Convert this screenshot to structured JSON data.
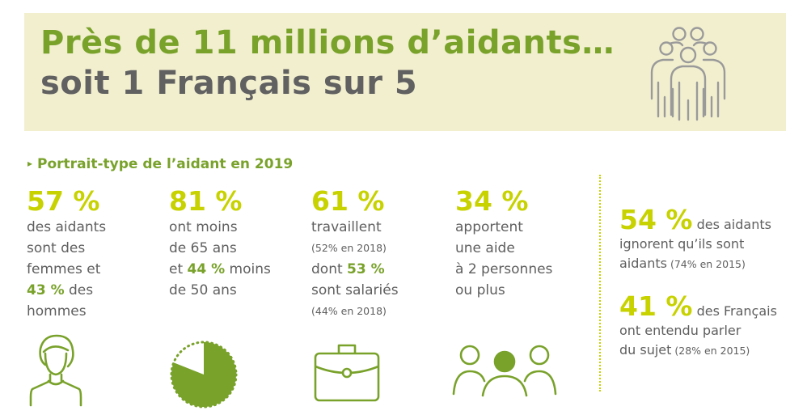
{
  "header": {
    "title_line1": "Près de 11 millions d’aidants…",
    "title_line2": "soit 1 Français sur 5",
    "icon": "group-people-icon"
  },
  "section": {
    "arrow": "▸",
    "title": "Portrait-type de l’aidant en 2019"
  },
  "stats": [
    {
      "pct": "57 %",
      "icon": "woman-icon",
      "line1": "des aidants",
      "line2": "sont des",
      "line3": "femmes et",
      "hl1": "43 %",
      "line4_rest": " des",
      "line5": "hommes"
    },
    {
      "pct": "81 %",
      "icon": "pie-chart-icon",
      "value_fraction": 0.81,
      "line1": "ont moins",
      "line2": "de 65 ans",
      "line3_pre": "et ",
      "hl1": "44 %",
      "line3_rest": " moins",
      "line4": "de 50 ans"
    },
    {
      "pct": "61 %",
      "icon": "briefcase-icon",
      "line1": "travaillent",
      "small1": "(52% en 2018)",
      "line2_pre": "dont ",
      "hl1": "53 %",
      "line3": "sont salariés",
      "small2": "(44% en 2018)"
    },
    {
      "pct": "34 %",
      "icon": "three-people-icon",
      "line1": "apportent",
      "line2": "une aide",
      "line3": "à 2 personnes",
      "line4": "ou plus"
    }
  ],
  "side": [
    {
      "big": "54 %",
      "t1": " des aidants",
      "t2": "ignorent qu’ils sont",
      "t3": "aidants",
      "small": " (74% en 2015)"
    },
    {
      "big": "41 %",
      "t1": " des Français",
      "t2": "ont entendu parler",
      "t3": "du sujet",
      "small": " (28% en 2015)"
    }
  ],
  "colors": {
    "green": "#79a22b",
    "lime": "#c7d200",
    "grey": "#5f5f5f",
    "banner": "#f2efcf"
  }
}
